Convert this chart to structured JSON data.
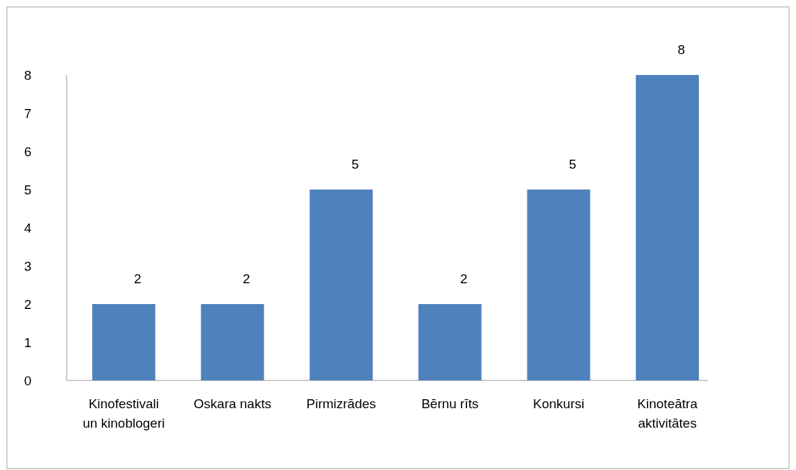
{
  "chart_data": {
    "type": "bar",
    "categories": [
      "Kinofestivali un kinoblogeri",
      "Oskara nakts",
      "Pirmizrādes",
      "Bērnu rīts",
      "Konkursi",
      "Kinoteātra aktivitātes"
    ],
    "values": [
      2,
      2,
      5,
      2,
      5,
      8
    ],
    "color": "#4f81bd",
    "ylim": [
      0,
      8
    ],
    "yticks": [
      0,
      1,
      2,
      3,
      4,
      5,
      6,
      7,
      8
    ],
    "data_labels": true,
    "grid": false
  }
}
